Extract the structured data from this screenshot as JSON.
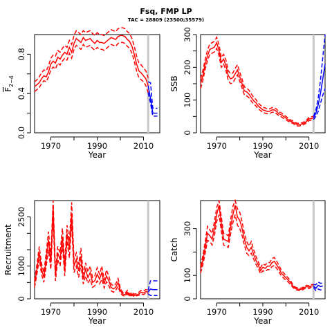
{
  "figure": {
    "title": "Fsq, FMP LP",
    "subtitle": "TAC = 28809 (23500;35579)"
  },
  "colors": {
    "historic": "#ff0000",
    "projection": "#0000ff",
    "marker": "#c8c8c8"
  },
  "marker_year": 2012,
  "chart_data": [
    {
      "type": "line",
      "id": "fbar",
      "ylabel": "F2-4",
      "xlabel": "Year",
      "xlim": [
        1963,
        2017
      ],
      "ylim": [
        0,
        1.0
      ],
      "xticks": [
        1970,
        1990,
        2010
      ],
      "yticks": [
        0.0,
        0.4,
        0.8
      ],
      "ytick_labels": [
        "0.0",
        "0.4",
        "0.8"
      ],
      "series": [
        {
          "role": "historic",
          "x": [
            1963,
            1964,
            1965,
            1966,
            1967,
            1968,
            1969,
            1970,
            1971,
            1972,
            1973,
            1974,
            1975,
            1976,
            1977,
            1978,
            1979,
            1980,
            1981,
            1982,
            1983,
            1984,
            1985,
            1986,
            1987,
            1988,
            1989,
            1990,
            1991,
            1992,
            1993,
            1994,
            1995,
            1996,
            1997,
            1998,
            1999,
            2000,
            2001,
            2002,
            2003,
            2004,
            2005,
            2006,
            2007,
            2008,
            2009,
            2010,
            2011,
            2012
          ],
          "mid": [
            0.47,
            0.49,
            0.51,
            0.55,
            0.58,
            0.57,
            0.62,
            0.7,
            0.73,
            0.71,
            0.77,
            0.75,
            0.79,
            0.82,
            0.8,
            0.87,
            0.82,
            0.91,
            0.96,
            0.94,
            0.92,
            0.97,
            0.94,
            0.95,
            0.96,
            0.93,
            0.91,
            0.94,
            0.92,
            0.92,
            0.91,
            0.93,
            0.95,
            0.97,
            0.96,
            0.95,
            0.98,
            0.99,
            0.99,
            0.98,
            0.95,
            0.93,
            0.88,
            0.8,
            0.7,
            0.63,
            0.61,
            0.58,
            0.55,
            0.48
          ],
          "lower": [
            0.42,
            0.44,
            0.46,
            0.5,
            0.53,
            0.52,
            0.57,
            0.64,
            0.67,
            0.65,
            0.71,
            0.69,
            0.73,
            0.76,
            0.74,
            0.81,
            0.76,
            0.85,
            0.89,
            0.87,
            0.85,
            0.9,
            0.87,
            0.88,
            0.89,
            0.86,
            0.84,
            0.87,
            0.85,
            0.85,
            0.84,
            0.86,
            0.88,
            0.9,
            0.89,
            0.88,
            0.91,
            0.92,
            0.92,
            0.91,
            0.88,
            0.86,
            0.81,
            0.73,
            0.63,
            0.56,
            0.54,
            0.52,
            0.48,
            0.41
          ],
          "upper": [
            0.52,
            0.54,
            0.57,
            0.61,
            0.64,
            0.63,
            0.68,
            0.76,
            0.79,
            0.78,
            0.84,
            0.82,
            0.86,
            0.89,
            0.87,
            0.94,
            0.9,
            0.99,
            1.04,
            1.02,
            1.0,
            1.04,
            1.02,
            1.03,
            1.04,
            1.01,
            0.99,
            1.02,
            1.0,
            1.0,
            0.99,
            1.01,
            1.03,
            1.05,
            1.04,
            1.03,
            1.06,
            1.07,
            1.07,
            1.06,
            1.03,
            1.01,
            0.96,
            0.88,
            0.78,
            0.71,
            0.69,
            0.66,
            0.63,
            0.56
          ]
        },
        {
          "role": "projection",
          "x": [
            2012,
            2013,
            2014,
            2015,
            2016
          ],
          "mid": [
            0.48,
            0.35,
            0.2,
            0.2,
            0.2
          ],
          "lower": [
            0.41,
            0.3,
            0.17,
            0.17,
            0.17
          ],
          "upper": [
            0.52,
            0.51,
            0.25,
            0.25,
            0.25
          ]
        }
      ]
    },
    {
      "type": "line",
      "id": "ssb",
      "ylabel": "SSB",
      "xlabel": "Year",
      "xlim": [
        1963,
        2017
      ],
      "ylim": [
        0,
        300
      ],
      "xticks": [
        1970,
        1990,
        2010
      ],
      "yticks": [
        0,
        100,
        200,
        300
      ],
      "ytick_labels": [
        "0",
        "100",
        "200",
        "300"
      ],
      "series": [
        {
          "role": "historic",
          "x": [
            1963,
            1964,
            1965,
            1966,
            1967,
            1968,
            1969,
            1970,
            1971,
            1972,
            1973,
            1974,
            1975,
            1976,
            1977,
            1978,
            1979,
            1980,
            1981,
            1982,
            1983,
            1984,
            1985,
            1986,
            1987,
            1988,
            1989,
            1990,
            1991,
            1992,
            1993,
            1994,
            1995,
            1996,
            1997,
            1998,
            1999,
            2000,
            2001,
            2002,
            2003,
            2004,
            2005,
            2006,
            2007,
            2008,
            2009,
            2010,
            2011,
            2012
          ],
          "mid": [
            150,
            175,
            210,
            235,
            255,
            258,
            262,
            275,
            250,
            215,
            225,
            205,
            175,
            165,
            168,
            180,
            192,
            170,
            150,
            128,
            125,
            118,
            108,
            98,
            92,
            82,
            76,
            70,
            68,
            65,
            66,
            70,
            70,
            65,
            58,
            55,
            50,
            45,
            40,
            35,
            33,
            28,
            25,
            25,
            27,
            30,
            35,
            42,
            44,
            45
          ],
          "lower": [
            135,
            160,
            195,
            220,
            240,
            243,
            247,
            258,
            235,
            200,
            210,
            190,
            160,
            150,
            153,
            165,
            177,
            157,
            137,
            116,
            113,
            107,
            97,
            88,
            82,
            73,
            68,
            62,
            60,
            58,
            59,
            63,
            63,
            58,
            52,
            49,
            44,
            40,
            35,
            31,
            29,
            24,
            21,
            21,
            23,
            26,
            31,
            37,
            39,
            40
          ],
          "upper": [
            165,
            190,
            225,
            252,
            272,
            275,
            280,
            292,
            268,
            230,
            240,
            222,
            190,
            180,
            183,
            197,
            208,
            185,
            164,
            140,
            137,
            130,
            119,
            108,
            102,
            91,
            84,
            78,
            76,
            72,
            73,
            77,
            77,
            72,
            64,
            61,
            56,
            50,
            45,
            39,
            37,
            32,
            29,
            29,
            31,
            34,
            39,
            47,
            49,
            50
          ]
        },
        {
          "role": "projection",
          "x": [
            2012,
            2013,
            2014,
            2015,
            2016,
            2017
          ],
          "mid": [
            45,
            60,
            85,
            120,
            165,
            210
          ],
          "lower": [
            40,
            50,
            65,
            90,
            115,
            135
          ],
          "upper": [
            50,
            70,
            105,
            160,
            230,
            300
          ]
        }
      ]
    },
    {
      "type": "line",
      "id": "recruitment",
      "ylabel": "Recruitment",
      "xlabel": "Year",
      "xlim": [
        1963,
        2017
      ],
      "ylim": [
        0,
        3000
      ],
      "xticks": [
        1970,
        1990,
        2010
      ],
      "yticks": [
        0,
        1000,
        2500
      ],
      "ytick_labels": [
        "0",
        "1000",
        "2500"
      ],
      "series": [
        {
          "role": "historic",
          "x": [
            1963,
            1964,
            1965,
            1966,
            1967,
            1968,
            1969,
            1970,
            1971,
            1972,
            1973,
            1974,
            1975,
            1976,
            1977,
            1978,
            1979,
            1980,
            1981,
            1982,
            1983,
            1984,
            1985,
            1986,
            1987,
            1988,
            1989,
            1990,
            1991,
            1992,
            1993,
            1994,
            1995,
            1996,
            1997,
            1998,
            1999,
            2000,
            2001,
            2002,
            2003,
            2004,
            2005,
            2006,
            2007,
            2008,
            2009,
            2010,
            2011,
            2012
          ],
          "mid": [
            450,
            900,
            1400,
            900,
            650,
            1200,
            1800,
            1100,
            2800,
            700,
            1400,
            1200,
            1900,
            900,
            2000,
            1500,
            2600,
            1000,
            1200,
            850,
            1300,
            600,
            900,
            650,
            800,
            500,
            550,
            750,
            600,
            800,
            450,
            700,
            550,
            350,
            300,
            350,
            500,
            250,
            150,
            120,
            200,
            100,
            150,
            100,
            120,
            150,
            200,
            180,
            220,
            200
          ],
          "lower": [
            350,
            750,
            1200,
            750,
            500,
            1000,
            1500,
            900,
            2500,
            550,
            1200,
            1000,
            1650,
            700,
            1750,
            1250,
            2300,
            800,
            1000,
            650,
            1050,
            450,
            700,
            480,
            600,
            350,
            400,
            550,
            450,
            600,
            330,
            520,
            400,
            250,
            200,
            260,
            380,
            180,
            100,
            80,
            150,
            70,
            110,
            70,
            90,
            110,
            150,
            130,
            170,
            150
          ],
          "upper": [
            560,
            1050,
            1600,
            1070,
            800,
            1400,
            2050,
            1300,
            3000,
            850,
            1600,
            1400,
            2150,
            1100,
            2250,
            1750,
            2950,
            1200,
            1400,
            1050,
            1550,
            750,
            1100,
            820,
            1000,
            650,
            700,
            950,
            750,
            1000,
            570,
            880,
            700,
            450,
            400,
            450,
            620,
            320,
            200,
            160,
            260,
            140,
            200,
            140,
            160,
            200,
            260,
            240,
            280,
            260
          ]
        },
        {
          "role": "projection",
          "x": [
            2012,
            2013,
            2014,
            2015,
            2016
          ],
          "mid": [
            200,
            300,
            280,
            280,
            280
          ],
          "lower": [
            150,
            100,
            100,
            100,
            100
          ],
          "upper": [
            260,
            550,
            550,
            550,
            550
          ]
        }
      ]
    },
    {
      "type": "line",
      "id": "catch",
      "ylabel": "Catch",
      "xlabel": "Year",
      "xlim": [
        1963,
        2017
      ],
      "ylim": [
        0,
        420
      ],
      "xticks": [
        1970,
        1990,
        2010
      ],
      "yticks": [
        0,
        100,
        300
      ],
      "ytick_labels": [
        "0",
        "100",
        "300"
      ],
      "series": [
        {
          "role": "historic",
          "x": [
            1963,
            1964,
            1965,
            1966,
            1967,
            1968,
            1969,
            1970,
            1971,
            1972,
            1973,
            1974,
            1975,
            1976,
            1977,
            1978,
            1979,
            1980,
            1981,
            1982,
            1983,
            1984,
            1985,
            1986,
            1987,
            1988,
            1989,
            1990,
            1991,
            1992,
            1993,
            1994,
            1995,
            1996,
            1997,
            1998,
            1999,
            2000,
            2001,
            2002,
            2003,
            2004,
            2005,
            2006,
            2007,
            2008,
            2009,
            2010,
            2011,
            2012
          ],
          "mid": [
            125,
            165,
            220,
            280,
            270,
            255,
            300,
            360,
            400,
            320,
            255,
            250,
            245,
            305,
            360,
            400,
            350,
            335,
            300,
            255,
            220,
            205,
            220,
            190,
            165,
            145,
            120,
            135,
            130,
            140,
            140,
            155,
            160,
            145,
            130,
            110,
            100,
            90,
            80,
            70,
            55,
            45,
            42,
            40,
            42,
            48,
            52,
            50,
            55,
            55
          ],
          "lower": [
            110,
            145,
            195,
            250,
            245,
            230,
            270,
            330,
            360,
            290,
            230,
            225,
            220,
            275,
            325,
            360,
            315,
            300,
            270,
            230,
            195,
            185,
            195,
            170,
            148,
            130,
            107,
            120,
            116,
            125,
            125,
            138,
            143,
            130,
            116,
            98,
            89,
            80,
            71,
            62,
            49,
            40,
            37,
            35,
            37,
            43,
            46,
            44,
            49,
            49
          ],
          "upper": [
            140,
            185,
            245,
            310,
            295,
            280,
            330,
            390,
            420,
            350,
            280,
            275,
            270,
            335,
            395,
            420,
            385,
            370,
            330,
            280,
            245,
            225,
            245,
            210,
            182,
            160,
            133,
            150,
            144,
            155,
            155,
            172,
            177,
            160,
            144,
            122,
            111,
            100,
            89,
            78,
            61,
            50,
            47,
            45,
            47,
            53,
            58,
            56,
            61,
            61
          ]
        },
        {
          "role": "projection",
          "x": [
            2012,
            2013,
            2014,
            2015,
            2016
          ],
          "mid": [
            55,
            45,
            58,
            52,
            55
          ],
          "lower": [
            49,
            35,
            42,
            38,
            40
          ],
          "upper": [
            61,
            60,
            72,
            66,
            68
          ]
        }
      ]
    }
  ]
}
